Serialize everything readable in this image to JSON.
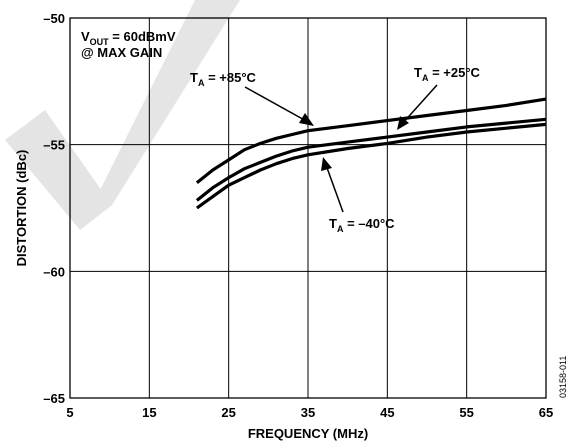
{
  "chart_data": {
    "type": "line",
    "xlabel": "FREQUENCY (MHz)",
    "ylabel": "DISTORTION (dBc)",
    "xlim": [
      5,
      65
    ],
    "ylim": [
      -65,
      -50
    ],
    "xticks": [
      5,
      15,
      25,
      35,
      45,
      55,
      65
    ],
    "yticks": [
      -65,
      -60,
      -55,
      -50
    ],
    "grid": true,
    "condition": {
      "line1_main": "V",
      "line1_sub": "OUT",
      "line1_rest": " = 60dBmV",
      "line2": "@ MAX GAIN"
    },
    "series": [
      {
        "name": "T_A = +85°C",
        "label_main": "T",
        "label_sub": "A",
        "label_rest": " = +85°C",
        "x": [
          21,
          23,
          25,
          27,
          29,
          31,
          33,
          35,
          40,
          45,
          50,
          55,
          60,
          65
        ],
        "y": [
          -56.5,
          -56.0,
          -55.6,
          -55.2,
          -54.95,
          -54.75,
          -54.6,
          -54.45,
          -54.25,
          -54.05,
          -53.85,
          -53.65,
          -53.45,
          -53.2
        ]
      },
      {
        "name": "T_A = +25°C",
        "label_main": "T",
        "label_sub": "A",
        "label_rest": " = +25°C",
        "x": [
          21,
          23,
          25,
          27,
          29,
          31,
          33,
          35,
          40,
          45,
          50,
          55,
          60,
          65
        ],
        "y": [
          -57.2,
          -56.7,
          -56.3,
          -55.95,
          -55.7,
          -55.45,
          -55.25,
          -55.1,
          -54.9,
          -54.7,
          -54.5,
          -54.3,
          -54.15,
          -54.0
        ]
      },
      {
        "name": "T_A = -40°C",
        "label_main": "T",
        "label_sub": "A",
        "label_rest": " = –40°C",
        "x": [
          21,
          23,
          25,
          27,
          29,
          31,
          33,
          35,
          40,
          45,
          50,
          55,
          60,
          65
        ],
        "y": [
          -57.5,
          -57.05,
          -56.6,
          -56.3,
          -56.0,
          -55.75,
          -55.55,
          -55.4,
          -55.15,
          -54.95,
          -54.7,
          -54.5,
          -54.35,
          -54.2
        ]
      }
    ],
    "figure_id": "03158-011"
  }
}
